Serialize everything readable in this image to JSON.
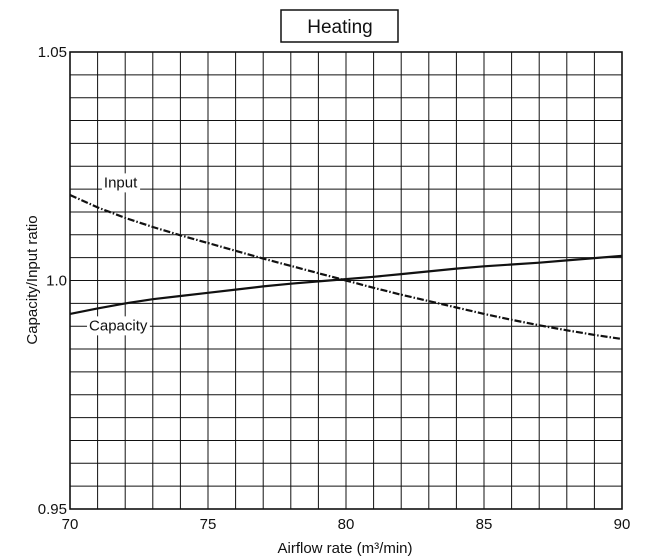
{
  "chart_data": {
    "type": "line",
    "title": "Heating",
    "xlabel": "Airflow rate (m³/min)",
    "ylabel": "Capacity/Input ratio",
    "xlim": [
      70,
      90
    ],
    "ylim": [
      0.95,
      1.05
    ],
    "x_ticks": [
      70,
      75,
      80,
      85,
      90
    ],
    "x_tick_labels": [
      "70",
      "75",
      "80",
      "85",
      "90"
    ],
    "y_ticks": [
      0.95,
      1.0,
      1.05
    ],
    "y_tick_labels": [
      "0.95",
      "1.0",
      "1.05"
    ],
    "x_grid_step": 1,
    "y_grid_step": 0.005,
    "grid": true,
    "legend": "none",
    "series": [
      {
        "name": "Input",
        "line_style": "dashed",
        "color": "#111111",
        "x": [
          70,
          71,
          72,
          73,
          74,
          75,
          76,
          77,
          78,
          79,
          80,
          81,
          82,
          83,
          84,
          85,
          86,
          87,
          88,
          89,
          90
        ],
        "y": [
          1.0187,
          1.016,
          1.0137,
          1.0117,
          1.0099,
          1.0082,
          1.0065,
          1.0048,
          1.0032,
          1.0016,
          1.0,
          0.9984,
          0.9969,
          0.9955,
          0.9941,
          0.9927,
          0.9914,
          0.9902,
          0.9891,
          0.9881,
          0.9872
        ]
      },
      {
        "name": "Capacity",
        "line_style": "solid",
        "color": "#111111",
        "x": [
          70,
          71,
          72,
          73,
          74,
          75,
          76,
          77,
          78,
          79,
          80,
          81,
          82,
          83,
          84,
          85,
          86,
          87,
          88,
          89,
          90
        ],
        "y": [
          0.9927,
          0.9939,
          0.995,
          0.9959,
          0.9966,
          0.9973,
          0.998,
          0.9987,
          0.9993,
          0.9998,
          1.0003,
          1.0008,
          1.0014,
          1.002,
          1.0026,
          1.0031,
          1.0035,
          1.0039,
          1.0044,
          1.0049,
          1.0054
        ]
      }
    ]
  }
}
